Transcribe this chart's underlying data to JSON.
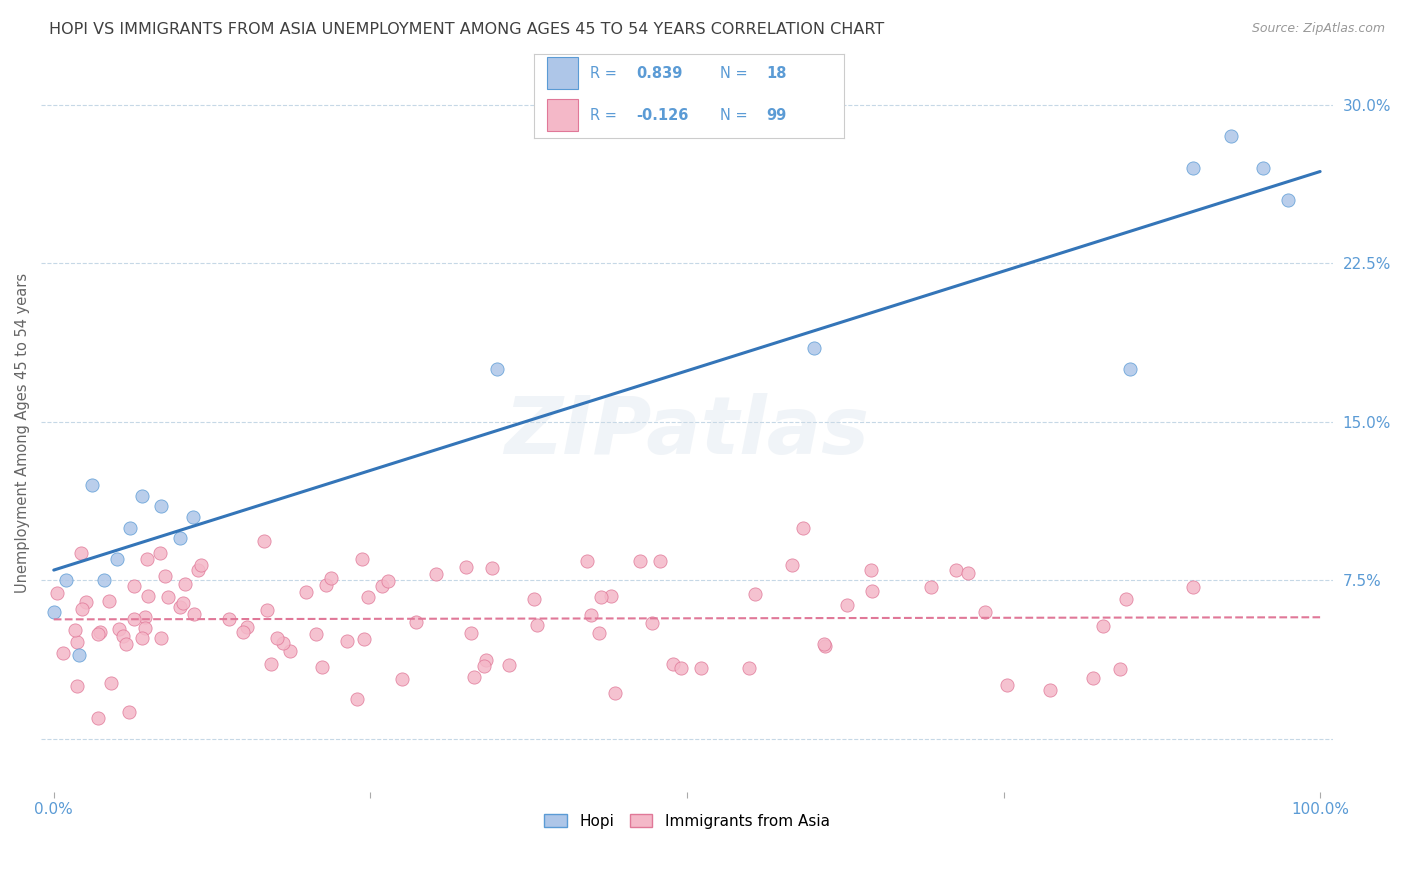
{
  "title": "HOPI VS IMMIGRANTS FROM ASIA UNEMPLOYMENT AMONG AGES 45 TO 54 YEARS CORRELATION CHART",
  "source": "Source: ZipAtlas.com",
  "ylabel": "Unemployment Among Ages 45 to 54 years",
  "xlim": [
    -0.01,
    1.01
  ],
  "ylim": [
    -0.025,
    0.315
  ],
  "yticks": [
    0.0,
    0.075,
    0.15,
    0.225,
    0.3
  ],
  "ytick_labels": [
    "",
    "7.5%",
    "15.0%",
    "22.5%",
    "30.0%"
  ],
  "xticks": [
    0.0,
    0.25,
    0.5,
    0.75,
    1.0
  ],
  "xtick_labels": [
    "0.0%",
    "",
    "",
    "",
    "100.0%"
  ],
  "hopi_color": "#aec6e8",
  "hopi_edge_color": "#5b9bd5",
  "pink_color": "#f4b8c8",
  "pink_edge_color": "#e07898",
  "hopi_line_color": "#3475b8",
  "pink_line_color": "#e07898",
  "legend_hopi_label": "Hopi",
  "legend_asia_label": "Immigrants from Asia",
  "background_color": "#ffffff",
  "grid_color": "#b8cfe0",
  "title_color": "#404040",
  "axis_label_color": "#5b9bd5",
  "watermark": "ZIPatlas",
  "hopi_x": [
    0.0,
    0.01,
    0.02,
    0.03,
    0.04,
    0.05,
    0.06,
    0.07,
    0.085,
    0.1,
    0.11,
    0.35,
    0.6,
    0.85,
    0.9,
    0.93,
    0.955,
    0.975
  ],
  "hopi_y": [
    0.06,
    0.075,
    0.04,
    0.12,
    0.075,
    0.085,
    0.1,
    0.115,
    0.11,
    0.095,
    0.105,
    0.175,
    0.185,
    0.175,
    0.27,
    0.285,
    0.27,
    0.255
  ],
  "hopi_line_x": [
    0.0,
    1.0
  ],
  "hopi_line_y": [
    0.04,
    0.27
  ],
  "asia_line_x": [
    0.0,
    1.0
  ],
  "asia_line_y": [
    0.058,
    0.048
  ]
}
